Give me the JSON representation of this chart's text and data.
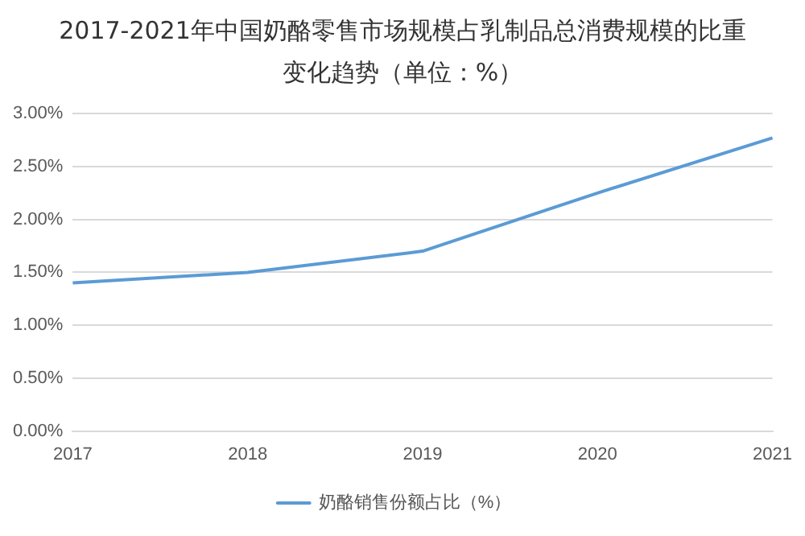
{
  "chart_data": {
    "type": "line",
    "title": "2017-2021年中国奶酪零售市场规模占乳制品总消费规模的比重变化趋势（单位：%）",
    "categories": [
      "2017",
      "2018",
      "2019",
      "2020",
      "2021"
    ],
    "series": [
      {
        "name": "奶酪销售份额占比（%）",
        "color": "#5b9bd5",
        "values": [
          1.4,
          1.5,
          1.7,
          2.25,
          2.77
        ]
      }
    ],
    "ylim": [
      0,
      3
    ],
    "yticks": [
      {
        "value": 0,
        "label": "0.00%"
      },
      {
        "value": 0.5,
        "label": "0.50%"
      },
      {
        "value": 1,
        "label": "1.00%"
      },
      {
        "value": 1.5,
        "label": "1.50%"
      },
      {
        "value": 2,
        "label": "2.00%"
      },
      {
        "value": 2.5,
        "label": "2.50%"
      },
      {
        "value": 3,
        "label": "3.00%"
      }
    ],
    "grid": "y",
    "legend": "bottom",
    "marker": "none",
    "line_style": "solid"
  }
}
